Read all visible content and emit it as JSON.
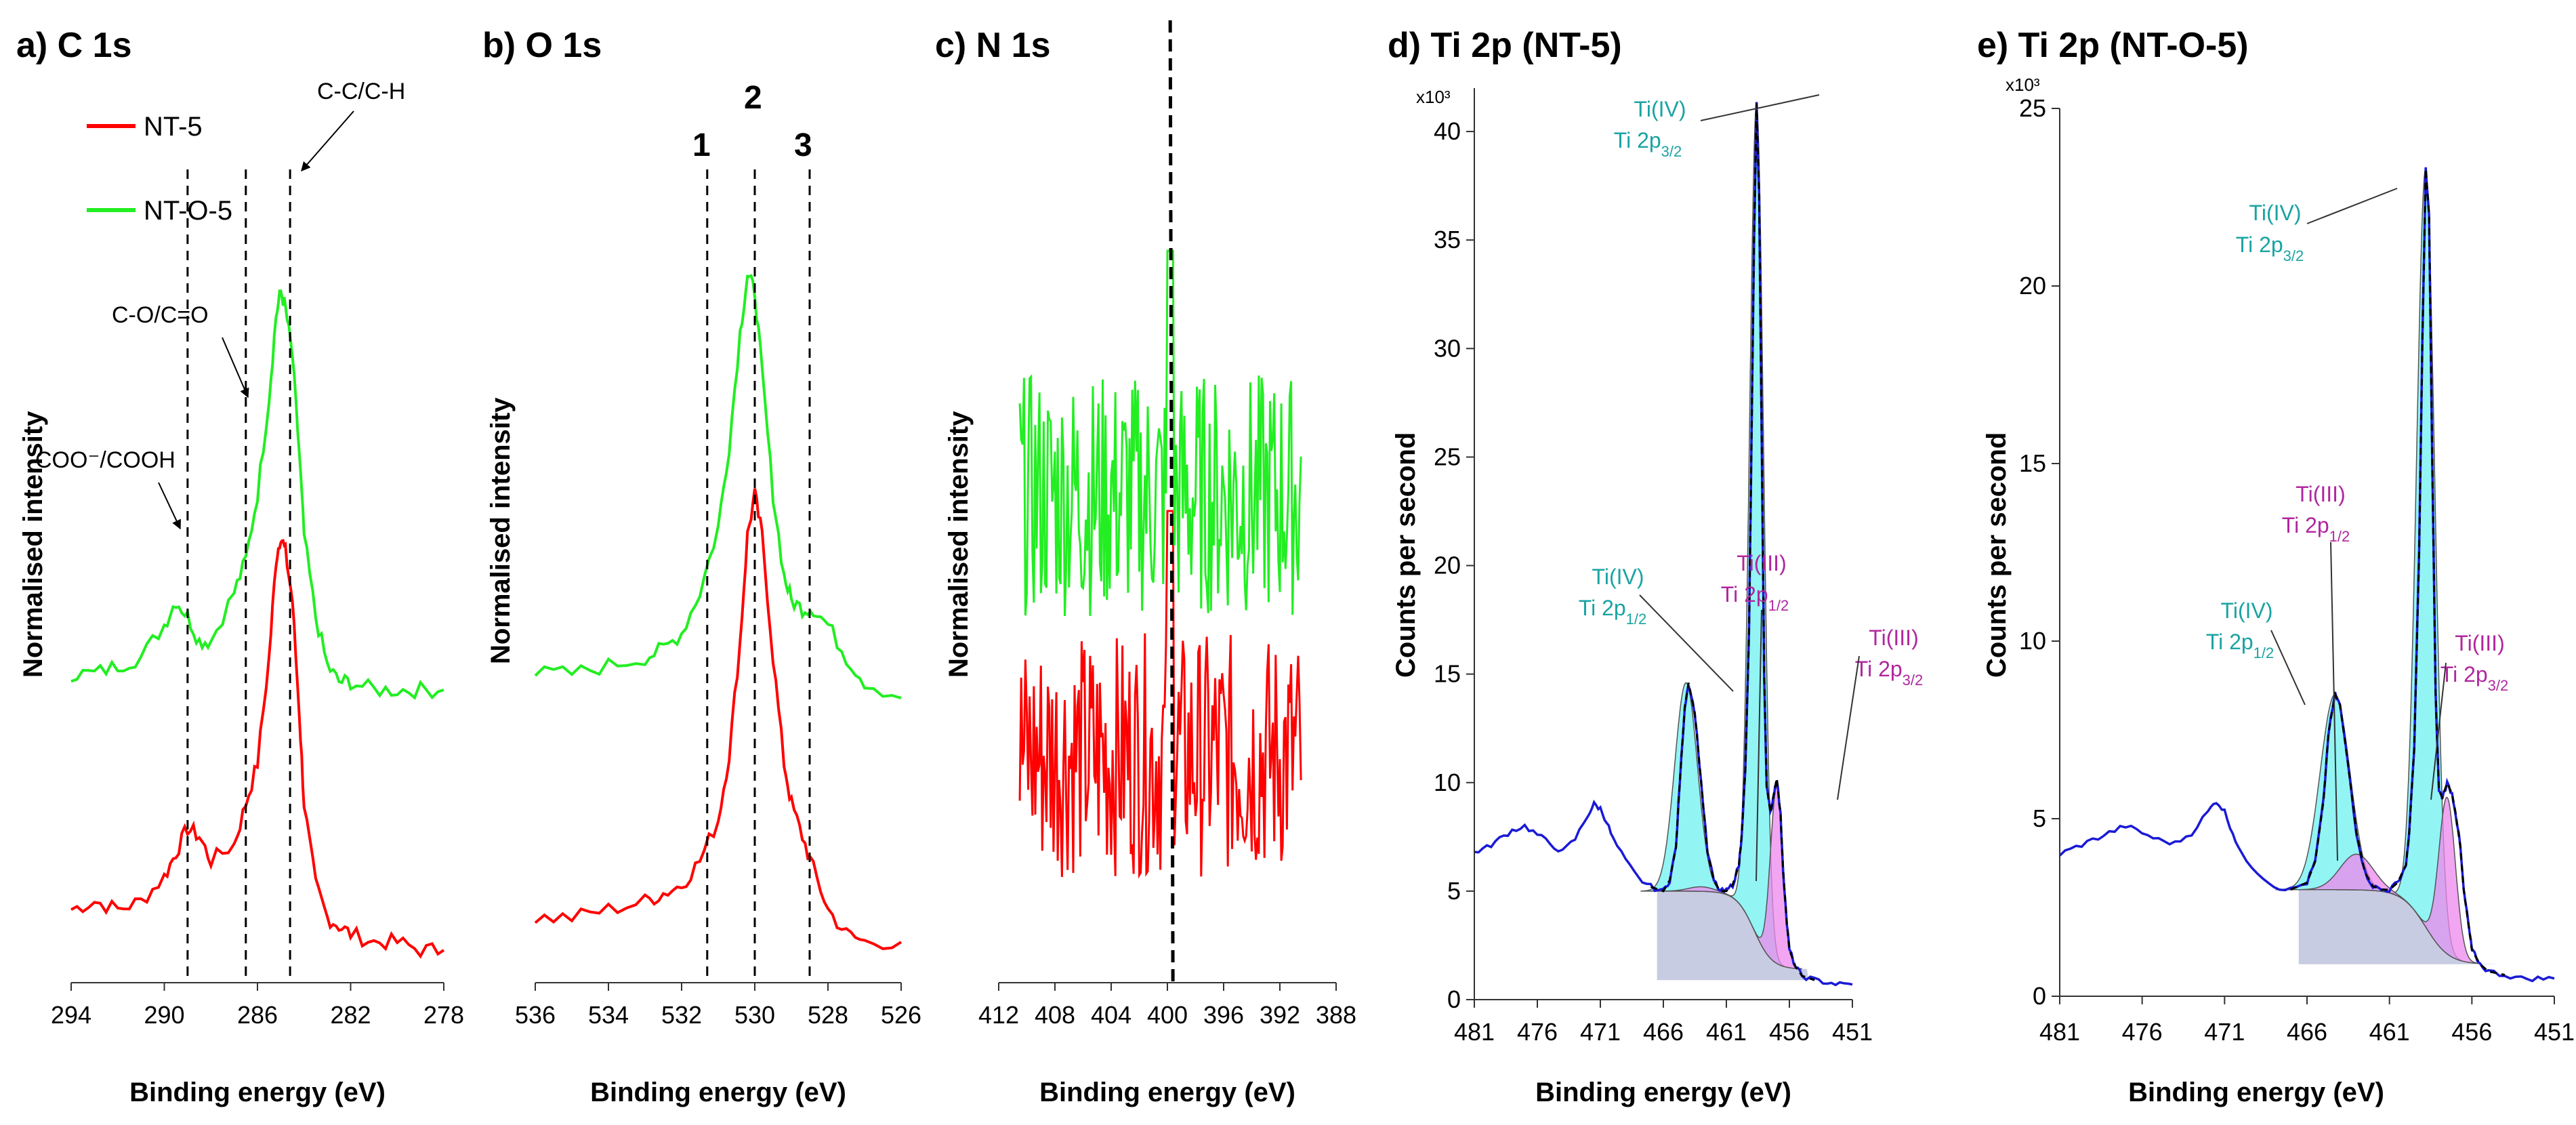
{
  "colors": {
    "red": "#ff0000",
    "green": "#22ee22",
    "blue": "#1a1ad6",
    "teal_fill": "#6ff0f0",
    "pink_fill": "#ee88ee",
    "grey_fill": "#b0b6d6",
    "teal_text": "#1aa3a3",
    "pink_text": "#b0279e",
    "axis": "#333333"
  },
  "chart_data": [
    {
      "type": "line",
      "title": "a) C 1s",
      "xlabel": "Binding energy (eV)",
      "ylabel": "Normalised intensity",
      "xlim": [
        294,
        278
      ],
      "xticks": [
        "294",
        "290",
        "286",
        "282",
        "278"
      ],
      "legend": {
        "placement": "top-left",
        "entries": [
          "NT-5",
          "NT-O-5"
        ]
      },
      "series": [
        {
          "name": "NT-5",
          "color": "#ff0000",
          "x": [
            294,
            293,
            292,
            291,
            290,
            289.5,
            289,
            288.5,
            288,
            287,
            286.5,
            286,
            285.5,
            285.2,
            285,
            284.8,
            284.5,
            284.2,
            284,
            283.5,
            283,
            282.5,
            282,
            281,
            280,
            279,
            278
          ],
          "y": [
            0.09,
            0.1,
            0.09,
            0.1,
            0.13,
            0.16,
            0.19,
            0.18,
            0.15,
            0.17,
            0.22,
            0.27,
            0.4,
            0.52,
            0.55,
            0.53,
            0.47,
            0.33,
            0.22,
            0.12,
            0.08,
            0.07,
            0.06,
            0.05,
            0.05,
            0.04,
            0.04
          ]
        },
        {
          "name": "NT-O-5",
          "color": "#22ee22",
          "x": [
            294,
            293,
            292,
            291,
            290,
            289.5,
            289,
            288.5,
            288,
            287,
            286.5,
            286,
            285.5,
            285.2,
            285,
            284.8,
            284.5,
            284.2,
            284,
            283.5,
            283,
            282.5,
            282,
            281,
            280,
            279,
            278
          ],
          "y": [
            0.38,
            0.38,
            0.39,
            0.4,
            0.44,
            0.47,
            0.45,
            0.42,
            0.42,
            0.48,
            0.52,
            0.6,
            0.72,
            0.82,
            0.85,
            0.83,
            0.77,
            0.65,
            0.55,
            0.45,
            0.39,
            0.37,
            0.37,
            0.36,
            0.36,
            0.36,
            0.36
          ]
        }
      ],
      "annotations": [
        {
          "text": "C-C/C-H",
          "x": 284.6
        },
        {
          "text": "C-O/C=O",
          "x": 286.5
        },
        {
          "text": "COO⁻/COOH",
          "x": 289
        }
      ],
      "reference_lines_x": [
        289,
        286.5,
        284.6
      ]
    },
    {
      "type": "line",
      "title": "b) O 1s",
      "xlabel": "Binding energy (eV)",
      "ylabel": "Normalised intensity",
      "xlim": [
        536,
        526
      ],
      "xticks": [
        "536",
        "534",
        "532",
        "530",
        "528",
        "526"
      ],
      "series": [
        {
          "name": "NT-5",
          "color": "#ff0000",
          "x": [
            536,
            535,
            534,
            533,
            532.5,
            532,
            531.5,
            531,
            530.7,
            530.4,
            530.2,
            530,
            529.8,
            529.5,
            529.2,
            529,
            528.7,
            528.4,
            528,
            527.5,
            527,
            526
          ],
          "y": [
            0.08,
            0.08,
            0.09,
            0.1,
            0.11,
            0.12,
            0.15,
            0.2,
            0.28,
            0.42,
            0.55,
            0.6,
            0.55,
            0.4,
            0.27,
            0.22,
            0.18,
            0.14,
            0.09,
            0.06,
            0.05,
            0.05
          ]
        },
        {
          "name": "NT-O-5",
          "color": "#22ee22",
          "x": [
            536,
            535,
            534,
            533,
            532.5,
            532,
            531.5,
            531,
            530.7,
            530.4,
            530.2,
            530,
            529.8,
            529.5,
            529.2,
            529,
            528.7,
            528.4,
            528,
            527.5,
            527,
            526
          ],
          "y": [
            0.38,
            0.38,
            0.39,
            0.4,
            0.41,
            0.43,
            0.48,
            0.56,
            0.66,
            0.8,
            0.87,
            0.85,
            0.75,
            0.6,
            0.5,
            0.47,
            0.46,
            0.46,
            0.44,
            0.4,
            0.37,
            0.35
          ]
        }
      ],
      "annotations": [
        {
          "text": "1",
          "x": 531.3
        },
        {
          "text": "2",
          "x": 530
        },
        {
          "text": "3",
          "x": 528.5
        }
      ],
      "reference_lines_x": [
        531.3,
        530,
        528.5
      ]
    },
    {
      "type": "line",
      "title": "c) N 1s",
      "xlabel": "Binding energy (eV)",
      "ylabel": "Normalised intensity",
      "xlim": [
        412,
        388
      ],
      "xticks": [
        "412",
        "408",
        "404",
        "400",
        "396",
        "392",
        "388"
      ],
      "series": [
        {
          "name": "NT-5",
          "color": "#ff0000",
          "note": "noisy trace",
          "x_range": [
            410.5,
            390.5
          ],
          "mean": 0.28,
          "spread": 0.15
        },
        {
          "name": "NT-O-5",
          "color": "#22ee22",
          "note": "noisy trace",
          "x_range": [
            410.5,
            390.5
          ],
          "mean": 0.6,
          "spread": 0.15
        }
      ],
      "reference_lines_x": [
        399.8
      ]
    },
    {
      "type": "area",
      "title": "d) Ti 2p (NT-5)",
      "xlabel": "Binding energy (eV)",
      "ylabel": "Counts per second",
      "multiplier": "x10³",
      "xlim": [
        481,
        451
      ],
      "ylim": [
        0,
        42
      ],
      "xticks": [
        "481",
        "476",
        "471",
        "466",
        "461",
        "456",
        "451"
      ],
      "yticks": [
        "0",
        "5",
        "10",
        "15",
        "20",
        "25",
        "30",
        "35",
        "40"
      ],
      "series": [
        {
          "name": "Measured",
          "color": "#1a1ad6",
          "x": [
            481,
            480,
            479,
            478,
            477,
            476,
            475,
            474,
            473,
            472,
            471.5,
            471,
            470.5,
            470,
            469,
            468,
            467,
            466,
            465.5,
            465,
            464.7,
            464.3,
            464,
            463.5,
            463,
            462.5,
            462,
            461.5,
            461,
            460.5,
            460,
            459.8,
            459.5,
            459.2,
            459,
            458.8,
            458.6,
            458.4,
            458.2,
            458,
            457.8,
            457.5,
            457.2,
            457,
            456.7,
            456.5,
            456.2,
            456,
            455.5,
            455,
            454,
            453,
            452,
            451
          ],
          "y": [
            6.8,
            7.0,
            7.4,
            7.8,
            8.0,
            7.6,
            7.2,
            6.8,
            7.4,
            8.5,
            9.0,
            8.8,
            8.2,
            7.4,
            6.4,
            5.6,
            5.2,
            5.0,
            5.5,
            7.0,
            10.0,
            13.5,
            14.6,
            13.2,
            10.0,
            6.8,
            5.5,
            5.0,
            5.0,
            5.3,
            6.2,
            7.5,
            10.5,
            17.0,
            26.0,
            35.0,
            41.3,
            37.0,
            26.0,
            15.0,
            9.8,
            8.6,
            9.6,
            10.2,
            8.5,
            6.0,
            3.5,
            2.3,
            1.5,
            1.1,
            0.9,
            0.8,
            0.7,
            0.7
          ]
        },
        {
          "name": "Ti(IV) Ti 2p3/2",
          "peak_x": 458.6,
          "peak_y": 41.3
        },
        {
          "name": "Ti(IV) Ti 2p1/2",
          "peak_x": 464.2,
          "peak_y": 14.6
        },
        {
          "name": "Ti(III) Ti 2p1/2",
          "peak_x": 463.0,
          "peak_y": 5.2
        },
        {
          "name": "Ti(III) Ti 2p3/2",
          "peak_x": 457.0,
          "peak_y": 9.8
        }
      ],
      "labels": [
        {
          "line1": "Ti(IV)",
          "line2": "Ti 2p",
          "sub": "3/2",
          "kind": "teal"
        },
        {
          "line1": "Ti(IV)",
          "line2": "Ti 2p",
          "sub": "1/2",
          "kind": "teal"
        },
        {
          "line1": "Ti(III)",
          "line2": "Ti 2p",
          "sub": "1/2",
          "kind": "pink"
        },
        {
          "line1": "Ti(III)",
          "line2": "Ti 2p",
          "sub": "3/2",
          "kind": "pink"
        }
      ]
    },
    {
      "type": "area",
      "title": "e) Ti 2p (NT-O-5)",
      "xlabel": "Binding energy (eV)",
      "ylabel": "Counts per second",
      "multiplier": "x10³",
      "xlim": [
        481,
        451
      ],
      "ylim": [
        0,
        25
      ],
      "xticks": [
        "481",
        "476",
        "471",
        "466",
        "461",
        "456",
        "451"
      ],
      "yticks": [
        "0",
        "5",
        "10",
        "15",
        "20",
        "25"
      ],
      "series": [
        {
          "name": "Measured",
          "color": "#1a1ad6",
          "x": [
            481,
            480,
            479,
            478,
            477,
            476,
            475,
            474,
            473,
            472,
            471.5,
            471,
            470.5,
            470,
            469,
            468,
            467,
            466,
            465.5,
            465,
            464.7,
            464.3,
            464,
            463.5,
            463,
            462.5,
            462,
            461.5,
            461,
            460.5,
            460,
            459.8,
            459.5,
            459.2,
            459,
            458.8,
            458.6,
            458.4,
            458.2,
            458,
            457.8,
            457.5,
            457.2,
            457,
            456.7,
            456.5,
            456.2,
            456,
            455.5,
            455,
            454,
            453,
            452,
            451
          ],
          "y": [
            4.0,
            4.2,
            4.4,
            4.6,
            4.8,
            4.6,
            4.4,
            4.3,
            4.6,
            5.2,
            5.5,
            5.2,
            4.6,
            4.0,
            3.5,
            3.1,
            3.0,
            3.2,
            3.8,
            5.5,
            7.4,
            8.5,
            8.2,
            6.5,
            4.6,
            3.5,
            3.1,
            3.0,
            3.0,
            3.2,
            3.7,
            4.6,
            7.0,
            12.5,
            18.5,
            23.3,
            22.0,
            15.0,
            8.5,
            5.8,
            5.6,
            6.0,
            5.7,
            5.2,
            4.2,
            3.0,
            2.0,
            1.3,
            0.9,
            0.7,
            0.6,
            0.5,
            0.5,
            0.5
          ]
        },
        {
          "name": "Ti(IV) Ti 2p3/2",
          "peak_x": 458.8,
          "peak_y": 23.3
        },
        {
          "name": "Ti(IV) Ti 2p1/2",
          "peak_x": 464.3,
          "peak_y": 8.5
        },
        {
          "name": "Ti(III) Ti 2p1/2",
          "peak_x": 463.0,
          "peak_y": 4.0
        },
        {
          "name": "Ti(III) Ti 2p3/2",
          "peak_x": 457.5,
          "peak_y": 5.6
        }
      ],
      "labels": [
        {
          "line1": "Ti(IV)",
          "line2": "Ti 2p",
          "sub": "3/2",
          "kind": "teal"
        },
        {
          "line1": "Ti(III)",
          "line2": "Ti 2p",
          "sub": "1/2",
          "kind": "pink"
        },
        {
          "line1": "Ti(IV)",
          "line2": "Ti 2p",
          "sub": "1/2",
          "kind": "teal"
        },
        {
          "line1": "Ti(III)",
          "line2": "Ti 2p",
          "sub": "3/2",
          "kind": "pink"
        }
      ]
    }
  ]
}
